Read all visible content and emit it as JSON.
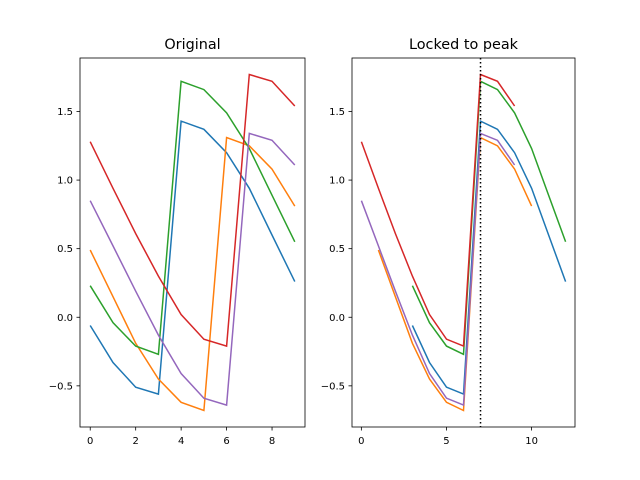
{
  "chart_data": [
    {
      "type": "line",
      "title": "Original",
      "xlim": [
        -0.45,
        9.45
      ],
      "ylim": [
        -0.8,
        1.89
      ],
      "xticks": [
        0,
        2,
        4,
        6,
        8
      ],
      "yticks": [
        -0.5,
        0.0,
        0.5,
        1.0,
        1.5
      ],
      "ytick_labels": [
        "−0.5",
        "0.0",
        "0.5",
        "1.0",
        "1.5"
      ],
      "series": [
        {
          "color": "#1f77b4",
          "x": [
            0,
            1,
            2,
            3,
            4,
            5,
            6,
            7,
            8,
            9
          ],
          "y": [
            -0.06,
            -0.33,
            -0.51,
            -0.56,
            1.43,
            1.37,
            1.2,
            0.94,
            0.6,
            0.26
          ]
        },
        {
          "color": "#ff7f0e",
          "x": [
            0,
            1,
            2,
            3,
            4,
            5,
            6,
            7,
            8,
            9
          ],
          "y": [
            0.49,
            0.15,
            -0.19,
            -0.45,
            -0.62,
            -0.68,
            1.31,
            1.25,
            1.08,
            0.81
          ]
        },
        {
          "color": "#2ca02c",
          "x": [
            0,
            1,
            2,
            3,
            4,
            5,
            6,
            7,
            8,
            9
          ],
          "y": [
            0.23,
            -0.04,
            -0.21,
            -0.27,
            1.72,
            1.66,
            1.49,
            1.23,
            0.89,
            0.55
          ]
        },
        {
          "color": "#d62728",
          "x": [
            0,
            1,
            2,
            3,
            4,
            5,
            6,
            7,
            8,
            9
          ],
          "y": [
            1.28,
            0.94,
            0.61,
            0.3,
            0.02,
            -0.16,
            -0.21,
            1.77,
            1.72,
            1.54
          ]
        },
        {
          "color": "#9467bd",
          "x": [
            0,
            1,
            2,
            3,
            4,
            5,
            6,
            7,
            8,
            9
          ],
          "y": [
            0.85,
            0.52,
            0.19,
            -0.13,
            -0.41,
            -0.59,
            -0.64,
            1.34,
            1.29,
            1.11
          ]
        }
      ]
    },
    {
      "type": "line",
      "title": "Locked to peak",
      "xlim": [
        -0.55,
        12.55
      ],
      "ylim": [
        -0.8,
        1.89
      ],
      "xticks": [
        0,
        5,
        10
      ],
      "yticks": [
        -0.5,
        0.0,
        0.5,
        1.0,
        1.5
      ],
      "ytick_labels": [
        "−0.5",
        "0.0",
        "0.5",
        "1.0",
        "1.5"
      ],
      "vline": {
        "x": 7,
        "style": "dotted",
        "color": "#000000"
      },
      "series": [
        {
          "color": "#1f77b4",
          "x": [
            3,
            4,
            5,
            6,
            7,
            8,
            9,
            10,
            11,
            12
          ],
          "y": [
            -0.06,
            -0.33,
            -0.51,
            -0.56,
            1.43,
            1.37,
            1.2,
            0.94,
            0.6,
            0.26
          ]
        },
        {
          "color": "#ff7f0e",
          "x": [
            1,
            2,
            3,
            4,
            5,
            6,
            7,
            8,
            9,
            10
          ],
          "y": [
            0.49,
            0.15,
            -0.19,
            -0.45,
            -0.62,
            -0.68,
            1.31,
            1.25,
            1.08,
            0.81
          ]
        },
        {
          "color": "#2ca02c",
          "x": [
            3,
            4,
            5,
            6,
            7,
            8,
            9,
            10,
            11,
            12
          ],
          "y": [
            0.23,
            -0.04,
            -0.21,
            -0.27,
            1.72,
            1.66,
            1.49,
            1.23,
            0.89,
            0.55
          ]
        },
        {
          "color": "#d62728",
          "x": [
            0,
            1,
            2,
            3,
            4,
            5,
            6,
            7,
            8,
            9
          ],
          "y": [
            1.28,
            0.94,
            0.61,
            0.3,
            0.02,
            -0.16,
            -0.21,
            1.77,
            1.72,
            1.54
          ]
        },
        {
          "color": "#9467bd",
          "x": [
            0,
            1,
            2,
            3,
            4,
            5,
            6,
            7,
            8,
            9
          ],
          "y": [
            0.85,
            0.52,
            0.19,
            -0.13,
            -0.41,
            -0.59,
            -0.64,
            1.34,
            1.29,
            1.11
          ]
        }
      ]
    }
  ]
}
